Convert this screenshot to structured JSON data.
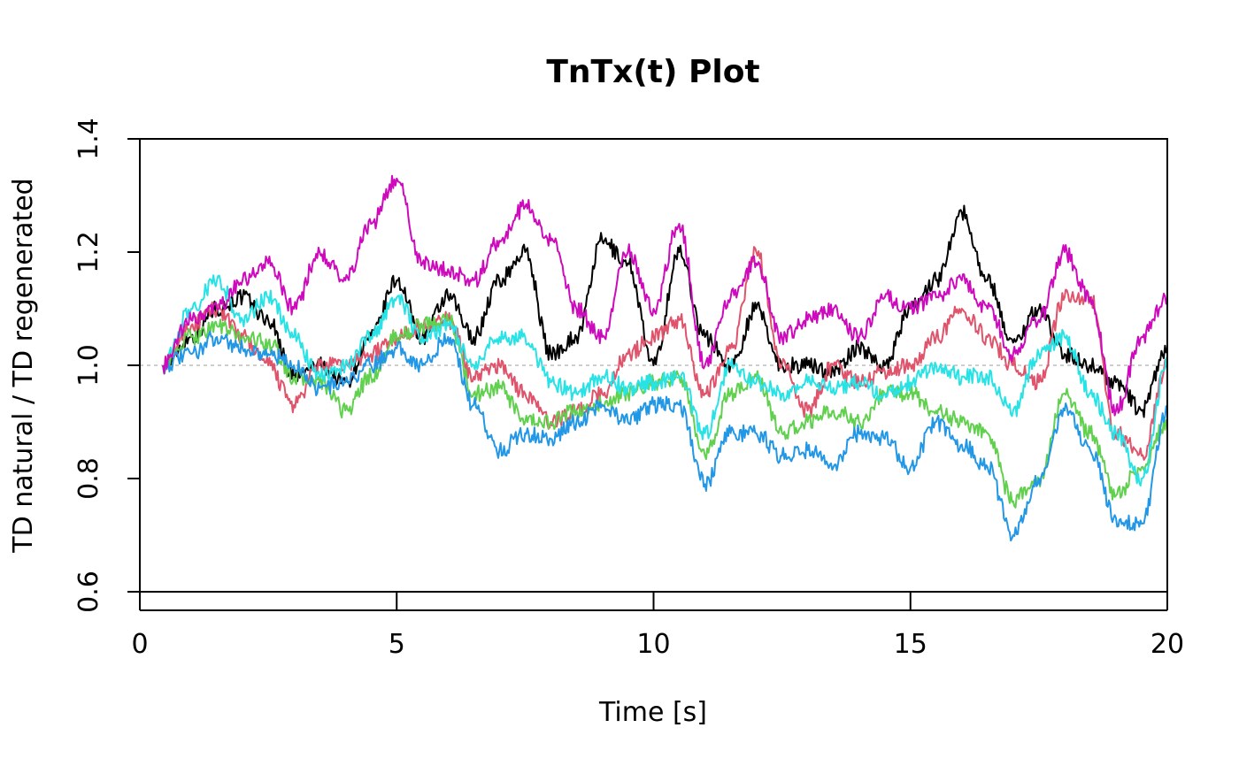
{
  "chart_data": {
    "type": "line",
    "title": "TnTx(t) Plot",
    "xlabel": "Time [s]",
    "ylabel": "TD natural / TD regenerated",
    "xlim": [
      0,
      20
    ],
    "ylim": [
      0.6,
      1.4
    ],
    "xticks": [
      0,
      5,
      10,
      15,
      20
    ],
    "yticks": [
      0.6,
      0.8,
      1.0,
      1.2,
      1.4
    ],
    "xtick_labels": [
      "0",
      "5",
      "10",
      "15",
      "20"
    ],
    "ytick_labels": [
      "0.6",
      "0.8",
      "1.0",
      "1.2",
      "1.4"
    ],
    "reference_line": {
      "y": 1.0,
      "color": "#bebebe",
      "style": "dotted"
    },
    "grid": false,
    "legend": "none",
    "series": [
      {
        "color": "#000000",
        "x": [
          0.45,
          1.0,
          1.5,
          2.0,
          2.5,
          3.0,
          3.5,
          4.0,
          4.5,
          5.0,
          5.5,
          6.0,
          6.5,
          7.0,
          7.5,
          8.0,
          8.5,
          9.0,
          9.5,
          10.0,
          10.5,
          11.0,
          11.5,
          12.0,
          12.5,
          13.0,
          13.5,
          14.0,
          14.5,
          15.0,
          15.5,
          16.0,
          16.5,
          17.0,
          17.5,
          18.0,
          18.5,
          19.0,
          19.5,
          20.0
        ],
        "y": [
          1.0,
          1.05,
          1.1,
          1.12,
          1.08,
          0.98,
          1.0,
          0.97,
          1.05,
          1.15,
          1.05,
          1.12,
          1.05,
          1.15,
          1.2,
          1.02,
          1.05,
          1.22,
          1.18,
          1.0,
          1.2,
          1.05,
          1.0,
          1.1,
          1.0,
          1.0,
          0.99,
          1.03,
          1.0,
          1.1,
          1.15,
          1.27,
          1.15,
          1.04,
          1.1,
          1.02,
          1.0,
          0.97,
          0.92,
          1.03
        ]
      },
      {
        "color": "#df536b",
        "x": [
          0.45,
          1.0,
          1.5,
          2.0,
          2.5,
          3.0,
          3.5,
          4.0,
          4.5,
          5.0,
          5.5,
          6.0,
          6.5,
          7.0,
          7.5,
          8.0,
          8.5,
          9.0,
          9.5,
          10.0,
          10.5,
          11.0,
          11.5,
          12.0,
          12.5,
          13.0,
          13.5,
          14.0,
          14.5,
          15.0,
          15.5,
          16.0,
          16.5,
          17.0,
          17.5,
          18.0,
          18.5,
          19.0,
          19.5,
          20.0
        ],
        "y": [
          1.0,
          1.07,
          1.1,
          1.05,
          1.0,
          0.93,
          1.0,
          1.0,
          1.02,
          1.05,
          1.07,
          1.08,
          0.98,
          1.0,
          0.95,
          0.9,
          0.92,
          0.95,
          1.02,
          1.05,
          1.08,
          0.95,
          1.03,
          1.2,
          1.0,
          0.92,
          1.0,
          0.97,
          0.99,
          1.0,
          1.05,
          1.1,
          1.05,
          1.0,
          0.97,
          1.12,
          1.12,
          0.88,
          0.84,
          1.0
        ]
      },
      {
        "color": "#61d04f",
        "x": [
          0.45,
          1.0,
          1.5,
          2.0,
          2.5,
          3.0,
          3.5,
          4.0,
          4.5,
          5.0,
          5.5,
          6.0,
          6.5,
          7.0,
          7.5,
          8.0,
          8.5,
          9.0,
          9.5,
          10.0,
          10.5,
          11.0,
          11.5,
          12.0,
          12.5,
          13.0,
          13.5,
          14.0,
          14.5,
          15.0,
          15.5,
          16.0,
          16.5,
          17.0,
          17.5,
          18.0,
          18.5,
          19.0,
          19.5,
          20.0
        ],
        "y": [
          1.0,
          1.05,
          1.07,
          1.05,
          1.04,
          0.98,
          0.97,
          0.92,
          0.98,
          1.05,
          1.07,
          1.08,
          0.95,
          0.96,
          0.9,
          0.9,
          0.92,
          0.93,
          0.95,
          0.97,
          0.98,
          0.84,
          0.95,
          0.98,
          0.88,
          0.9,
          0.92,
          0.9,
          0.95,
          0.95,
          0.92,
          0.9,
          0.88,
          0.76,
          0.8,
          0.95,
          0.88,
          0.77,
          0.82,
          0.9
        ]
      },
      {
        "color": "#2297e6",
        "x": [
          0.45,
          1.0,
          1.5,
          2.0,
          2.5,
          3.0,
          3.5,
          4.0,
          4.5,
          5.0,
          5.5,
          6.0,
          6.5,
          7.0,
          7.5,
          8.0,
          8.5,
          9.0,
          9.5,
          10.0,
          10.5,
          11.0,
          11.5,
          12.0,
          12.5,
          13.0,
          13.5,
          14.0,
          14.5,
          15.0,
          15.5,
          16.0,
          16.5,
          17.0,
          17.5,
          18.0,
          18.5,
          19.0,
          19.5,
          20.0
        ],
        "y": [
          1.0,
          1.02,
          1.05,
          1.03,
          1.02,
          1.0,
          0.96,
          0.97,
          1.0,
          1.03,
          1.0,
          1.05,
          0.93,
          0.85,
          0.88,
          0.87,
          0.9,
          0.93,
          0.9,
          0.93,
          0.93,
          0.79,
          0.88,
          0.88,
          0.84,
          0.85,
          0.82,
          0.88,
          0.87,
          0.82,
          0.9,
          0.86,
          0.82,
          0.7,
          0.8,
          0.92,
          0.85,
          0.73,
          0.72,
          0.92
        ]
      },
      {
        "color": "#28e2e5",
        "x": [
          0.45,
          1.0,
          1.5,
          2.0,
          2.5,
          3.0,
          3.5,
          4.0,
          4.5,
          5.0,
          5.5,
          6.0,
          6.5,
          7.0,
          7.5,
          8.0,
          8.5,
          9.0,
          9.5,
          10.0,
          10.5,
          11.0,
          11.5,
          12.0,
          12.5,
          13.0,
          13.5,
          14.0,
          14.5,
          15.0,
          15.5,
          16.0,
          16.5,
          17.0,
          17.5,
          18.0,
          18.5,
          19.0,
          19.5,
          20.0
        ],
        "y": [
          1.0,
          1.1,
          1.15,
          1.08,
          1.12,
          1.05,
          0.98,
          1.0,
          1.05,
          1.12,
          1.05,
          1.07,
          1.0,
          1.05,
          1.05,
          0.97,
          0.95,
          0.98,
          0.96,
          0.97,
          0.98,
          0.88,
          1.0,
          0.97,
          0.95,
          0.97,
          0.96,
          0.97,
          0.95,
          0.97,
          1.0,
          0.98,
          0.98,
          0.92,
          1.02,
          1.05,
          0.95,
          0.88,
          0.8,
          1.0
        ]
      },
      {
        "color": "#cd0bbc",
        "x": [
          0.45,
          1.0,
          1.5,
          2.0,
          2.5,
          3.0,
          3.5,
          4.0,
          4.5,
          5.0,
          5.5,
          6.0,
          6.5,
          7.0,
          7.5,
          8.0,
          8.5,
          9.0,
          9.5,
          10.0,
          10.5,
          11.0,
          11.5,
          12.0,
          12.5,
          13.0,
          13.5,
          14.0,
          14.5,
          15.0,
          15.5,
          16.0,
          16.5,
          17.0,
          17.5,
          18.0,
          18.5,
          19.0,
          19.5,
          20.0
        ],
        "y": [
          1.0,
          1.08,
          1.1,
          1.15,
          1.18,
          1.1,
          1.2,
          1.15,
          1.25,
          1.33,
          1.18,
          1.17,
          1.15,
          1.22,
          1.28,
          1.22,
          1.1,
          1.05,
          1.2,
          1.1,
          1.25,
          1.0,
          1.12,
          1.18,
          1.05,
          1.08,
          1.1,
          1.05,
          1.12,
          1.1,
          1.12,
          1.15,
          1.1,
          1.02,
          1.08,
          1.2,
          1.12,
          0.92,
          1.05,
          1.12
        ]
      }
    ]
  }
}
